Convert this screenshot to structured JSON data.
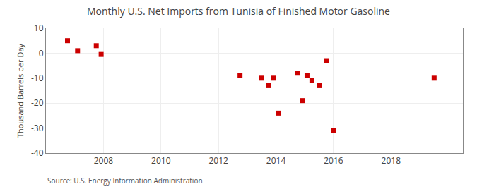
{
  "chart_data": {
    "type": "scatter",
    "title": "Monthly U.S. Net Imports from Tunisia of Finished Motor Gasoline",
    "ylabel": "Thousand Barrels per Day",
    "annotations": [
      "Source: U.S. Energy Information Administration"
    ],
    "x": [
      2006.75,
      2007.1,
      2007.75,
      2007.92,
      2012.75,
      2013.5,
      2013.75,
      2013.92,
      2014.08,
      2014.75,
      2014.92,
      2015.08,
      2015.25,
      2015.5,
      2015.75,
      2016.0,
      2019.5
    ],
    "values": [
      5,
      1,
      3,
      -0.5,
      -9,
      -10,
      -13,
      -10,
      -24,
      -8,
      -19,
      -9,
      -11,
      -13,
      -3,
      -31,
      -10
    ],
    "color": "#cc0000",
    "marker": "square",
    "xlim": [
      2006.0,
      2020.5
    ],
    "xticks": [
      2008,
      2010,
      2012,
      2014,
      2016,
      2018
    ],
    "ylim": [
      -40,
      10
    ],
    "yticks": [
      -40,
      -30,
      -20,
      -10,
      0,
      10
    ],
    "grid": true
  }
}
